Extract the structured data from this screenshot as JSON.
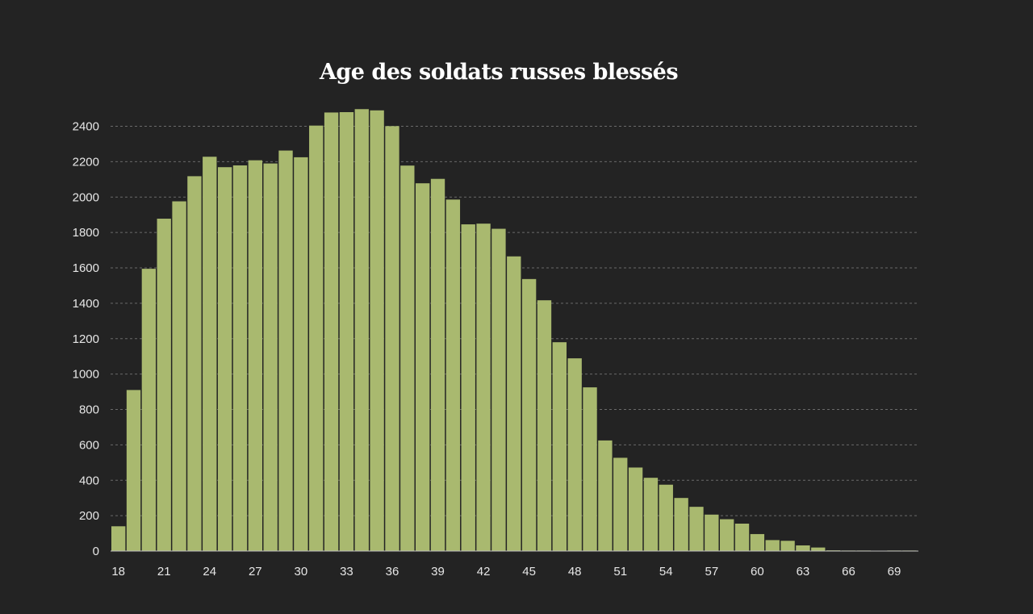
{
  "chart_data": {
    "type": "bar",
    "title": "Age des soldats russes blessés",
    "xlabel": "",
    "ylabel": "",
    "ylim": [
      0,
      2500
    ],
    "y_ticks": [
      0,
      200,
      400,
      600,
      800,
      1000,
      1200,
      1400,
      1600,
      1800,
      2000,
      2200,
      2400
    ],
    "x_tick_labels": [
      "18",
      "21",
      "24",
      "27",
      "30",
      "33",
      "36",
      "39",
      "42",
      "45",
      "48",
      "51",
      "54",
      "57",
      "60",
      "63",
      "66",
      "69"
    ],
    "grid": true,
    "legend": "none",
    "colors": {
      "background": "#232323",
      "bar": "#a9b96f",
      "bar_edge": "#232323",
      "text": "#e6e6e6",
      "title": "#ffffff",
      "grid": "#6a6a6a"
    },
    "categories": [
      18,
      19,
      20,
      21,
      22,
      23,
      24,
      25,
      26,
      27,
      28,
      29,
      30,
      31,
      32,
      33,
      34,
      35,
      36,
      37,
      38,
      39,
      40,
      41,
      42,
      43,
      44,
      45,
      46,
      47,
      48,
      49,
      50,
      51,
      52,
      53,
      54,
      55,
      56,
      57,
      58,
      59,
      60,
      61,
      62,
      63,
      64,
      65,
      66,
      67,
      68,
      69,
      70
    ],
    "values": [
      140,
      910,
      1595,
      1878,
      1976,
      2118,
      2228,
      2169,
      2179,
      2208,
      2190,
      2263,
      2225,
      2404,
      2478,
      2480,
      2497,
      2490,
      2401,
      2178,
      2078,
      2103,
      1986,
      1846,
      1850,
      1821,
      1665,
      1537,
      1417,
      1180,
      1089,
      925,
      625,
      527,
      472,
      414,
      375,
      300,
      250,
      206,
      180,
      155,
      96,
      62,
      58,
      32,
      20,
      4,
      3,
      3,
      2,
      3,
      3
    ]
  }
}
